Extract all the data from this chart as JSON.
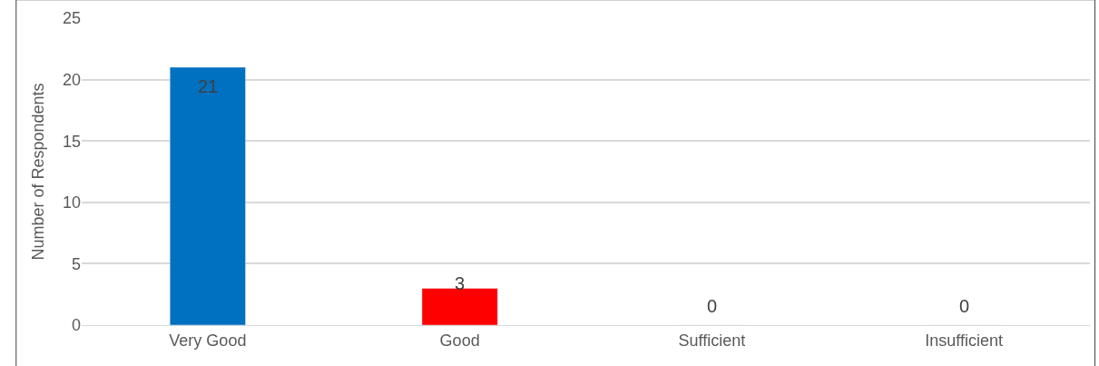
{
  "chart_data": {
    "type": "bar",
    "ylabel": "Number of Respondents",
    "categories": [
      "Very Good",
      "Good",
      "Sufficient",
      "Insufficient"
    ],
    "values": [
      21,
      3,
      0,
      0
    ],
    "colors": [
      "#0070c0",
      "#ff0000",
      null,
      null
    ],
    "ylim": [
      0,
      25
    ],
    "yticks": [
      0,
      5,
      10,
      15,
      20,
      25
    ],
    "grid": "y",
    "data_labels": true
  }
}
